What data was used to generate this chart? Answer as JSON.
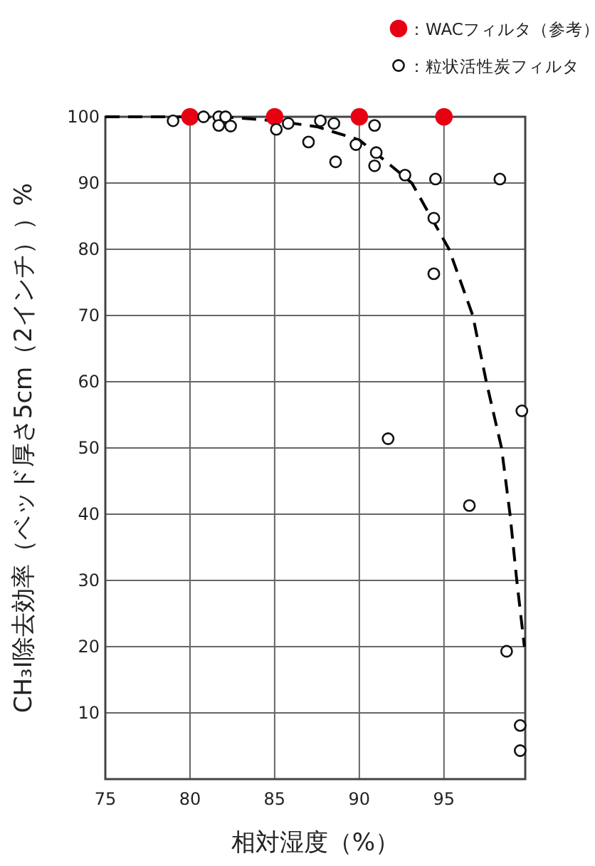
{
  "chart_data": {
    "type": "scatter",
    "xlabel": "相対湿度（%）",
    "ylabel": "CH₃I除去効率（ベッド厚さ5cm（2インチ））%",
    "xlim": [
      75,
      99.8
    ],
    "xticks": [
      75,
      80,
      85,
      90,
      95
    ],
    "ylim": [
      0,
      100
    ],
    "yticks": [
      10,
      20,
      30,
      40,
      50,
      60,
      70,
      80,
      90,
      100
    ],
    "grid": true,
    "legend": "top right",
    "marker": "circle",
    "series": [
      {
        "name": "：WACフィルタ（参考）",
        "color": "#e60012",
        "x": [
          80,
          85,
          90,
          95
        ],
        "values": [
          100,
          100,
          100,
          100
        ]
      },
      {
        "name": "：粒状活性炭フィルタ",
        "color": "#ffffff",
        "x": [
          79.0,
          80.8,
          81.7,
          82.1,
          81.7,
          82.4,
          85.1,
          85.8,
          87.0,
          87.7,
          88.5,
          88.6,
          89.8,
          90.9,
          91.0,
          90.9,
          92.7,
          94.5,
          98.3,
          94.4,
          94.4,
          91.7,
          96.5,
          99.6,
          98.7,
          99.5,
          99.5
        ],
        "values": [
          99.4,
          100,
          100,
          100,
          98.7,
          98.6,
          98.1,
          99.0,
          96.2,
          99.4,
          99.0,
          93.2,
          95.8,
          98.7,
          94.6,
          92.6,
          91.2,
          90.6,
          90.6,
          84.7,
          76.3,
          51.4,
          41.3,
          55.6,
          19.3,
          8.1,
          4.3
        ]
      },
      {
        "type": "line",
        "marker": "none",
        "line_style": "dashed",
        "color": "#000000",
        "x": [
          75,
          80,
          82.5,
          85,
          87.5,
          90,
          91.7,
          93.1,
          95.3,
          96.7,
          97.5,
          98.4,
          98.9,
          99.3,
          99.75
        ],
        "values": [
          100,
          100,
          99.9,
          99.4,
          98.5,
          96.5,
          93,
          90,
          80,
          70,
          60,
          50,
          40,
          30,
          20
        ]
      }
    ]
  }
}
